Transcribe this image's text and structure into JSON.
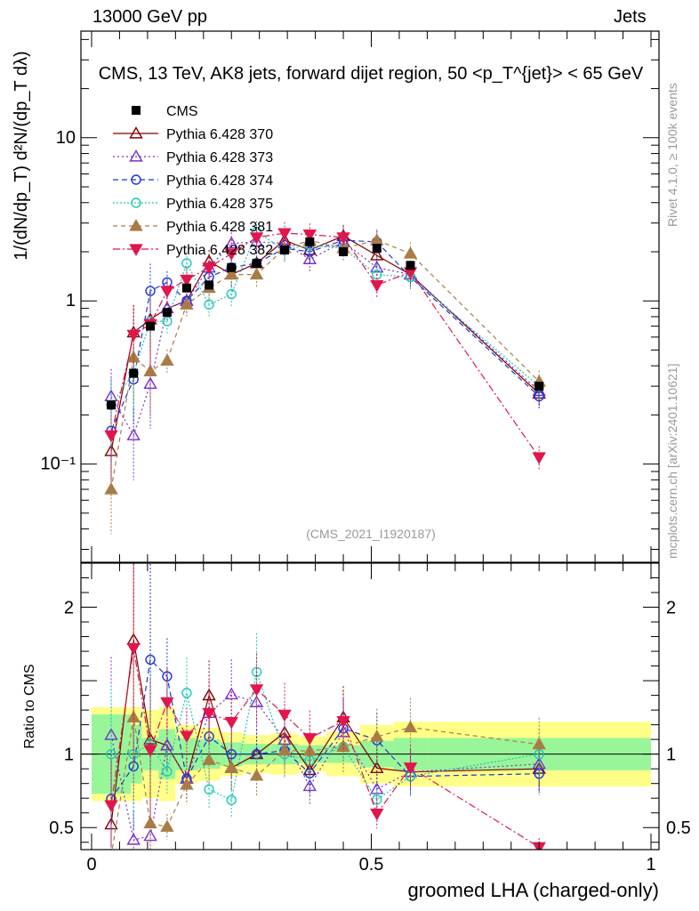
{
  "header": {
    "energy_label": "13000 GeV pp",
    "category_label": "Jets",
    "plot_title": "CMS, 13 TeV, AK8 jets, forward dijet region, 50 <p_T^{jet}> < 65 GeV",
    "analysis_id": "(CMS_2021_I1920187)",
    "rivet_label": "Rivet 4.1.0, ≥ 100k events",
    "source_label": "mcplots.cern.ch [arXiv:2401.10621]"
  },
  "chart_data": {
    "type": "line",
    "xlabel": "groomed LHA (charged-only)",
    "ylabel": "1/(dN/dp_T) d²N/(dp_T dλ)",
    "ratio_ylabel": "Ratio to CMS",
    "xlim": [
      0,
      1
    ],
    "ylim": [
      0.025,
      45
    ],
    "ylog": true,
    "ratio_ylim": [
      0.35,
      2.3
    ],
    "x_ticks": [
      {
        "value": 0,
        "label": "0"
      },
      {
        "value": 0.5,
        "label": "0.5"
      },
      {
        "value": 1,
        "label": "1"
      }
    ],
    "y_ticks": [
      {
        "value": 0.1,
        "label": "10⁻¹"
      },
      {
        "value": 1,
        "label": "1"
      },
      {
        "value": 10,
        "label": "10"
      }
    ],
    "ratio_ticks": [
      {
        "value": 0.5,
        "label": "0.5"
      },
      {
        "value": 1,
        "label": "1"
      },
      {
        "value": 2,
        "label": "2"
      }
    ],
    "x": [
      0.035,
      0.075,
      0.105,
      0.135,
      0.17,
      0.21,
      0.25,
      0.295,
      0.345,
      0.39,
      0.45,
      0.51,
      0.57,
      0.8
    ],
    "bin_edges": [
      0.0,
      0.07,
      0.09,
      0.12,
      0.15,
      0.19,
      0.23,
      0.27,
      0.32,
      0.37,
      0.42,
      0.48,
      0.54,
      0.6,
      1.0
    ],
    "data": {
      "name": "CMS",
      "values": [
        0.23,
        0.36,
        0.7,
        0.85,
        1.2,
        1.25,
        1.6,
        1.7,
        2.05,
        2.3,
        2.0,
        2.1,
        1.65,
        0.3
      ],
      "band_inner": [
        0.27,
        0.2,
        0.11,
        0.17,
        0.11,
        0.1,
        0.08,
        0.07,
        0.07,
        0.06,
        0.06,
        0.09,
        0.11,
        0.11
      ],
      "band_outer": [
        0.32,
        0.32,
        0.3,
        0.32,
        0.2,
        0.18,
        0.15,
        0.13,
        0.14,
        0.12,
        0.15,
        0.2,
        0.22,
        0.22
      ]
    },
    "series": [
      {
        "name": "Pythia 6.428 370",
        "color": "#800000",
        "marker": "triangle-up-open",
        "dash": "",
        "values": [
          0.12,
          0.64,
          0.77,
          0.9,
          1.0,
          1.75,
          1.45,
          1.7,
          2.35,
          2.05,
          2.5,
          1.9,
          1.45,
          0.27
        ]
      },
      {
        "name": "Pythia 6.428 373",
        "color": "#7b2fd0",
        "marker": "triangle-up-open",
        "dash": "2,3",
        "values": [
          0.26,
          0.15,
          0.31,
          0.9,
          1.0,
          1.6,
          2.25,
          2.3,
          2.25,
          1.8,
          2.3,
          1.6,
          1.45,
          0.28
        ]
      },
      {
        "name": "Pythia 6.428 374",
        "color": "#1a35d8",
        "marker": "circle-open",
        "dash": "6,4",
        "values": [
          0.16,
          0.33,
          1.15,
          1.3,
          1.0,
          1.4,
          1.6,
          1.7,
          2.1,
          2.0,
          2.35,
          2.3,
          1.4,
          0.26
        ]
      },
      {
        "name": "Pythia 6.428 375",
        "color": "#20c7b5",
        "marker": "circle-open",
        "dash": "2,2",
        "values": [
          0.23,
          0.36,
          0.75,
          0.75,
          1.7,
          0.95,
          1.1,
          2.65,
          2.05,
          2.2,
          2.1,
          1.45,
          1.4,
          0.3
        ]
      },
      {
        "name": "Pythia 6.428 381",
        "color": "#a97c46",
        "marker": "triangle-up-filled",
        "dash": "5,4",
        "values": [
          0.07,
          0.45,
          0.37,
          0.43,
          0.95,
          1.2,
          1.45,
          1.45,
          2.1,
          2.35,
          2.1,
          2.35,
          1.95,
          0.32
        ]
      },
      {
        "name": "Pythia 6.428 382",
        "color": "#e0164c",
        "marker": "triangle-down-filled",
        "dash": "8,3,2,3",
        "values": [
          0.15,
          0.62,
          0.72,
          1.15,
          1.35,
          1.6,
          1.95,
          2.45,
          2.6,
          2.55,
          2.45,
          1.25,
          1.5,
          0.11
        ]
      }
    ]
  }
}
